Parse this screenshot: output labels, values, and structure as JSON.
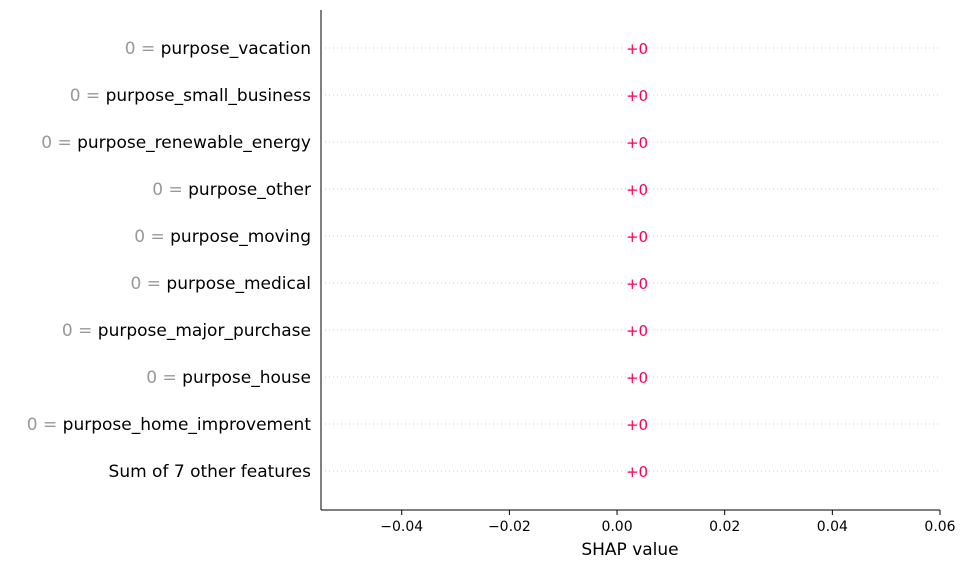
{
  "chart_data": {
    "type": "bar",
    "orientation": "horizontal",
    "xlabel": "SHAP value",
    "xlim": [
      -0.055,
      0.06
    ],
    "xticks": [
      -0.04,
      -0.02,
      0.0,
      0.02,
      0.04,
      0.06
    ],
    "xtick_labels": [
      "−0.04",
      "−0.02",
      "0.00",
      "0.02",
      "0.04",
      "0.06"
    ],
    "grid": "horizontal dotted",
    "features": [
      {
        "value_prefix": "0 = ",
        "name": "purpose_vacation",
        "shap": 0,
        "label": "+0"
      },
      {
        "value_prefix": "0 = ",
        "name": "purpose_small_business",
        "shap": 0,
        "label": "+0"
      },
      {
        "value_prefix": "0 = ",
        "name": "purpose_renewable_energy",
        "shap": 0,
        "label": "+0"
      },
      {
        "value_prefix": "0 = ",
        "name": "purpose_other",
        "shap": 0,
        "label": "+0"
      },
      {
        "value_prefix": "0 = ",
        "name": "purpose_moving",
        "shap": 0,
        "label": "+0"
      },
      {
        "value_prefix": "0 = ",
        "name": "purpose_medical",
        "shap": 0,
        "label": "+0"
      },
      {
        "value_prefix": "0 = ",
        "name": "purpose_major_purchase",
        "shap": 0,
        "label": "+0"
      },
      {
        "value_prefix": "0 = ",
        "name": "purpose_house",
        "shap": 0,
        "label": "+0"
      },
      {
        "value_prefix": "0 = ",
        "name": "purpose_home_improvement",
        "shap": 0,
        "label": "+0"
      },
      {
        "value_prefix": "",
        "name": "Sum of 7 other features",
        "shap": 0,
        "label": "+0"
      }
    ],
    "colors": {
      "value_label": "#ff0051",
      "feature_value": "#999999",
      "feature_name": "#000000",
      "grid": "#cccccc",
      "axis": "#000000"
    }
  }
}
